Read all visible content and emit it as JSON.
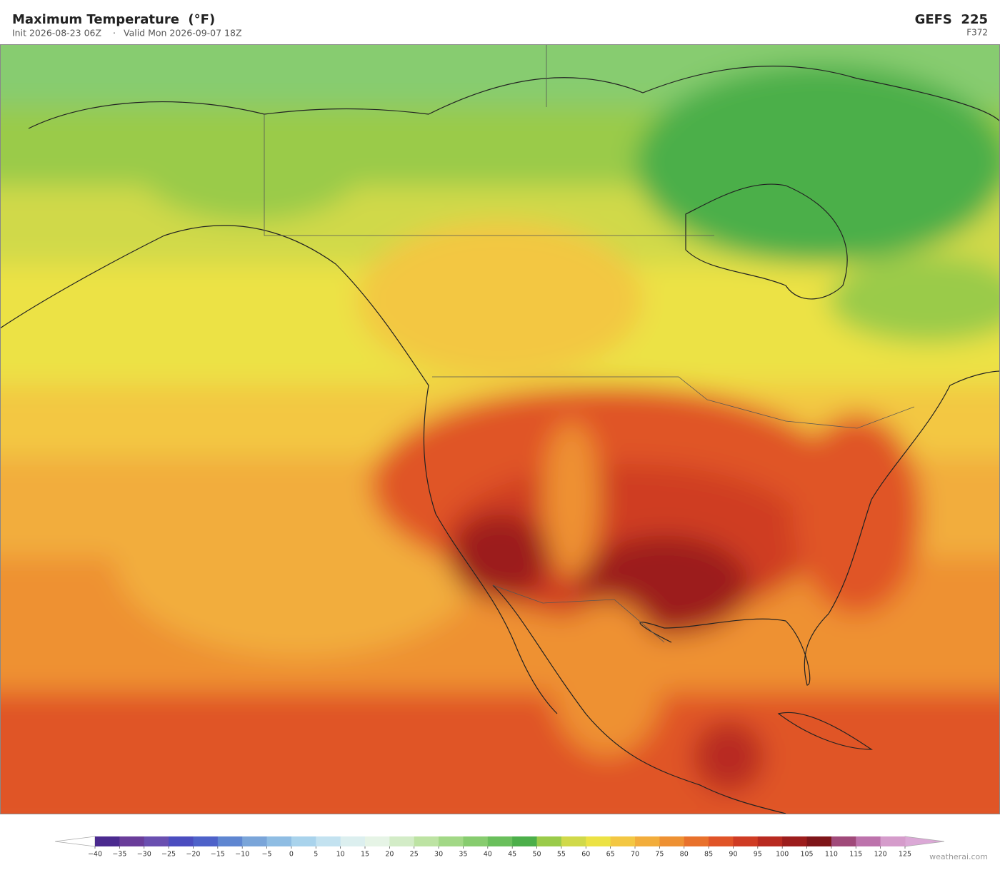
{
  "header": {
    "title": "Maximum Temperature  (°F)",
    "init": "Init 2026-08-23 06Z",
    "separator": "·",
    "valid": "Valid Mon 2026-09-07 18Z",
    "model": "GEFS  225",
    "forecast_hour": "F372"
  },
  "colorbar": {
    "ticks": [
      {
        "value": -40,
        "label": "−40"
      },
      {
        "value": -35,
        "label": "−35"
      },
      {
        "value": -30,
        "label": "−30"
      },
      {
        "value": -25,
        "label": "−25"
      },
      {
        "value": -20,
        "label": "−20"
      },
      {
        "value": -15,
        "label": "−15"
      },
      {
        "value": -10,
        "label": "−10"
      },
      {
        "value": -5,
        "label": "−5"
      },
      0,
      5,
      10,
      15,
      20,
      25,
      30,
      35,
      40,
      45,
      50,
      55,
      60,
      65,
      70,
      75,
      80,
      85,
      90,
      95,
      100,
      105,
      110,
      115,
      120,
      125
    ],
    "colors": [
      "#4b2a8f",
      "#6a3d9a",
      "#6a4fb0",
      "#4b4dbf",
      "#4e62c9",
      "#5f86d1",
      "#7aa5d9",
      "#8fbde3",
      "#a9d3ec",
      "#c3e2f0",
      "#dcefef",
      "#e6f4e6",
      "#d3ecc7",
      "#bde3a3",
      "#a2d886",
      "#87cc6f",
      "#6abf5c",
      "#4caf4a",
      "#9acb4a",
      "#d0d94a",
      "#ece244",
      "#f3c743",
      "#f2ad3c",
      "#ee9133",
      "#e8712c",
      "#e05428",
      "#cf3c24",
      "#b82a20",
      "#9c1d1c",
      "#7e1519",
      "#a04a7a",
      "#bd73ac",
      "#d59ccb"
    ],
    "under_color": "#ffffff",
    "over_color": "#dba8d6"
  },
  "credit": "weatherai.com"
}
